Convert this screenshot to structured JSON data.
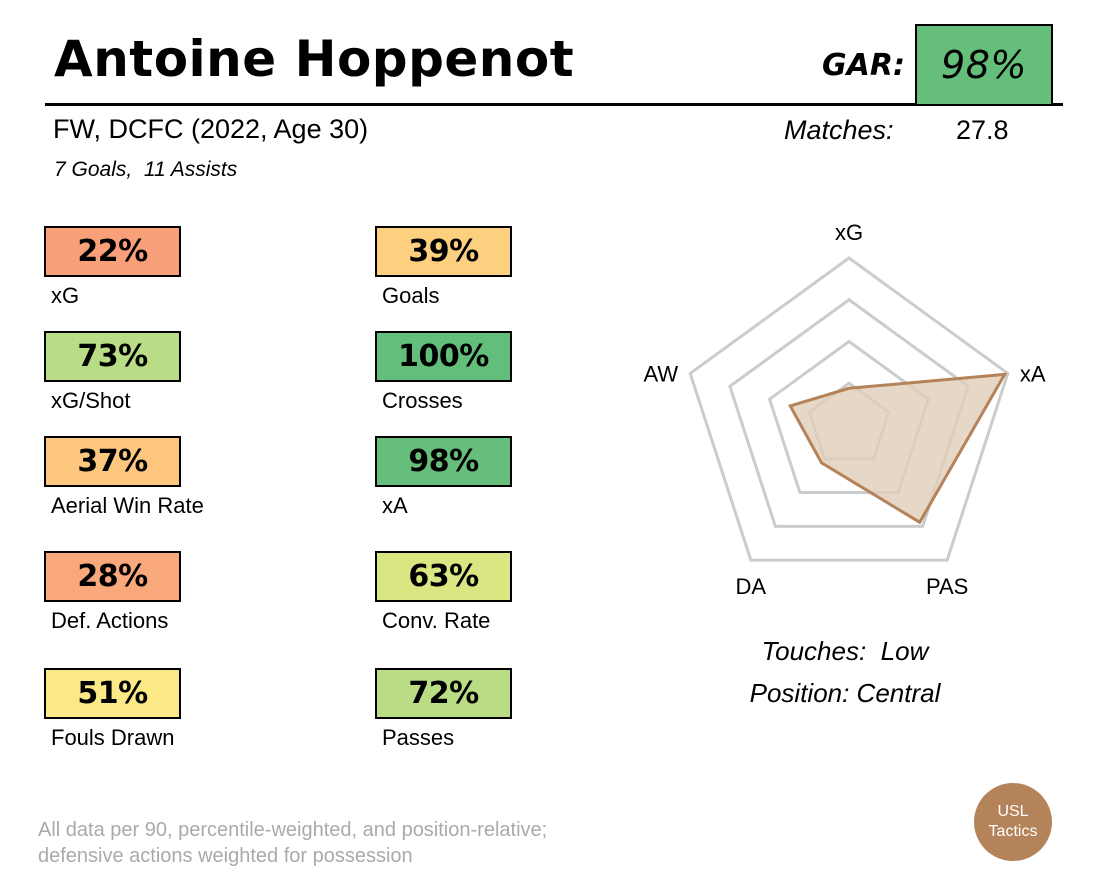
{
  "header": {
    "player_name": "Antoine Hoppenot",
    "gar_label": "GAR:",
    "gar_value": "98%",
    "gar_color": "#65bf7b",
    "subtitle": "FW, DCFC (2022, Age 30)",
    "goals_line": "7 Goals,  11 Assists",
    "matches_label": "Matches:",
    "matches_value": "27.8"
  },
  "stats_left": [
    {
      "value": "22%",
      "label": "xG",
      "color": "#f9a07a"
    },
    {
      "value": "73%",
      "label": "xG/Shot",
      "color": "#b9dc86"
    },
    {
      "value": "37%",
      "label": "Aerial Win Rate",
      "color": "#fdc77f"
    },
    {
      "value": "28%",
      "label": "Def. Actions",
      "color": "#f9a87b"
    },
    {
      "value": "51%",
      "label": "Fouls Drawn",
      "color": "#fbe886"
    }
  ],
  "stats_right": [
    {
      "value": "39%",
      "label": "Goals",
      "color": "#fdd080"
    },
    {
      "value": "100%",
      "label": "Crosses",
      "color": "#63be7b"
    },
    {
      "value": "98%",
      "label": "xA",
      "color": "#65bf7b"
    },
    {
      "value": "63%",
      "label": "Conv. Rate",
      "color": "#d9e682"
    },
    {
      "value": "72%",
      "label": "Passes",
      "color": "#badc85"
    }
  ],
  "chart_data": {
    "type": "radar",
    "axes": [
      "xG",
      "xA",
      "PAS",
      "DA",
      "AW"
    ],
    "values": [
      22,
      98,
      72,
      28,
      37
    ],
    "range": [
      0,
      100
    ],
    "rings": 4,
    "fill_color": "#e0cdb8",
    "line_color": "#b5835a"
  },
  "info": {
    "touches": "Touches:  Low",
    "position": "Position: Central"
  },
  "footnote": {
    "line1": "All data per 90, percentile-weighted, and position-relative;",
    "line2": "defensive actions weighted for possession"
  },
  "logo": {
    "line1": "USL",
    "line2": "Tactics",
    "color": "#b5835a"
  }
}
